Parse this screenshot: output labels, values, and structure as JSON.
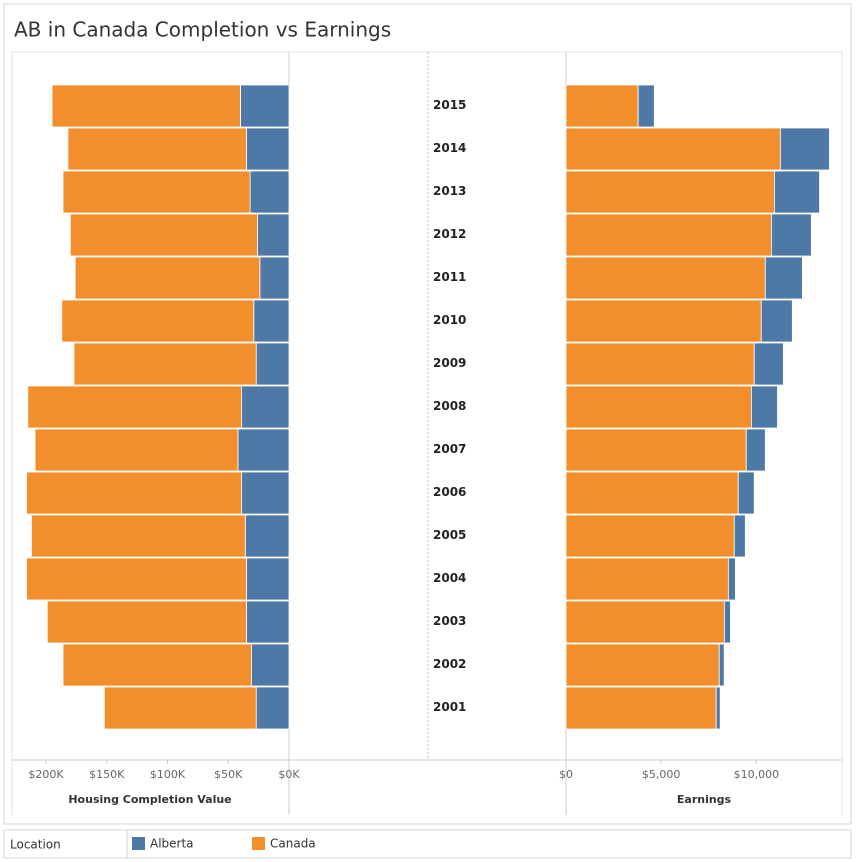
{
  "chart_data": {
    "type": "bar",
    "orientation": "horizontal",
    "title": "AB in Canada Completion vs Earnings",
    "categories": [
      "2015",
      "2014",
      "2013",
      "2012",
      "2011",
      "2010",
      "2009",
      "2008",
      "2007",
      "2006",
      "2005",
      "2004",
      "2003",
      "2002",
      "2001"
    ],
    "legend_title": "Location",
    "series": [
      {
        "name": "Alberta",
        "color": "#4e79a7",
        "housing_values": [
          40000,
          35000,
          32000,
          26000,
          24000,
          29000,
          27000,
          39000,
          42000,
          39000,
          36000,
          35000,
          35000,
          31000,
          27000
        ],
        "earnings_values": [
          850,
          2580,
          2370,
          2100,
          1950,
          1630,
          1530,
          1370,
          1000,
          840,
          580,
          370,
          320,
          260,
          210
        ]
      },
      {
        "name": "Canada",
        "color": "#f28e2b",
        "housing_values": [
          155000,
          147000,
          154000,
          154000,
          152000,
          158000,
          150000,
          176000,
          167000,
          177000,
          176000,
          181000,
          164000,
          155000,
          125000
        ],
        "earnings_values": [
          3790,
          11260,
          10950,
          10790,
          10470,
          10260,
          9890,
          9740,
          9470,
          9050,
          8840,
          8530,
          8320,
          8050,
          7890
        ]
      }
    ],
    "housing": {
      "xlabel": "Housing Completion Value",
      "reversed": true,
      "stack_order": [
        0,
        1
      ],
      "xlim": [
        0,
        228000
      ],
      "xticks": [
        {
          "value": 200000,
          "label": "$200K"
        },
        {
          "value": 150000,
          "label": "$150K"
        },
        {
          "value": 100000,
          "label": "$100K"
        },
        {
          "value": 50000,
          "label": "$50K"
        },
        {
          "value": 0,
          "label": "$0K"
        }
      ]
    },
    "earnings": {
      "xlabel": "Earnings",
      "reversed": false,
      "stack_order": [
        1,
        0
      ],
      "xlim": [
        0,
        14500
      ],
      "xticks": [
        {
          "value": 0,
          "label": "$0"
        },
        {
          "value": 5000,
          "label": "$5,000"
        },
        {
          "value": 10000,
          "label": "$10,000"
        }
      ]
    }
  }
}
